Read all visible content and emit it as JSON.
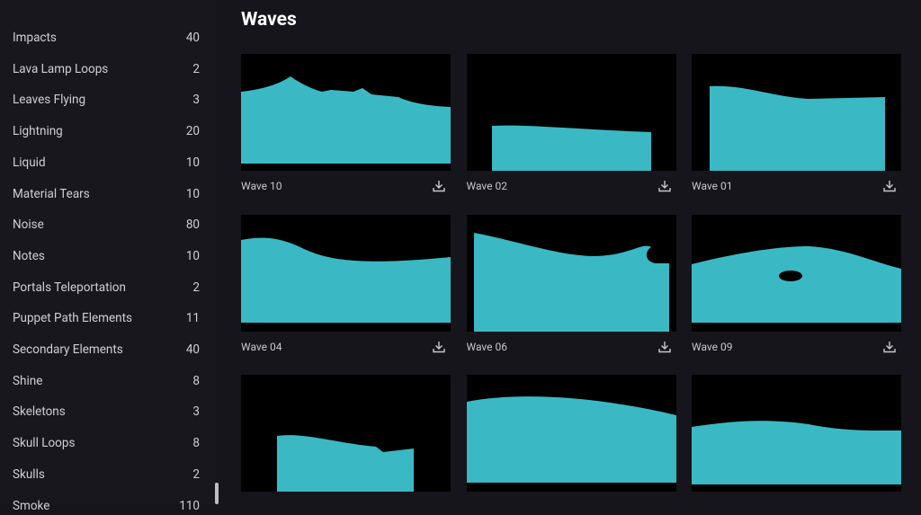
{
  "sidebar": {
    "items": [
      {
        "label": "Impacts",
        "count": 40
      },
      {
        "label": "Lava Lamp Loops",
        "count": 2
      },
      {
        "label": "Leaves Flying",
        "count": 3
      },
      {
        "label": "Lightning",
        "count": 20
      },
      {
        "label": "Liquid",
        "count": 10
      },
      {
        "label": "Material Tears",
        "count": 10
      },
      {
        "label": "Noise",
        "count": 80
      },
      {
        "label": "Notes",
        "count": 10
      },
      {
        "label": "Portals Teleportation",
        "count": 2
      },
      {
        "label": "Puppet Path Elements",
        "count": 11
      },
      {
        "label": "Secondary Elements",
        "count": 40
      },
      {
        "label": "Shine",
        "count": 8
      },
      {
        "label": "Skeletons",
        "count": 3
      },
      {
        "label": "Skull Loops",
        "count": 8
      },
      {
        "label": "Skulls",
        "count": 2
      },
      {
        "label": "Smoke",
        "count": 110
      }
    ]
  },
  "main": {
    "title": "Waves",
    "cards": [
      "Wave 10",
      "Wave 02",
      "Wave 01",
      "Wave 04",
      "Wave 06",
      "Wave 09"
    ]
  }
}
